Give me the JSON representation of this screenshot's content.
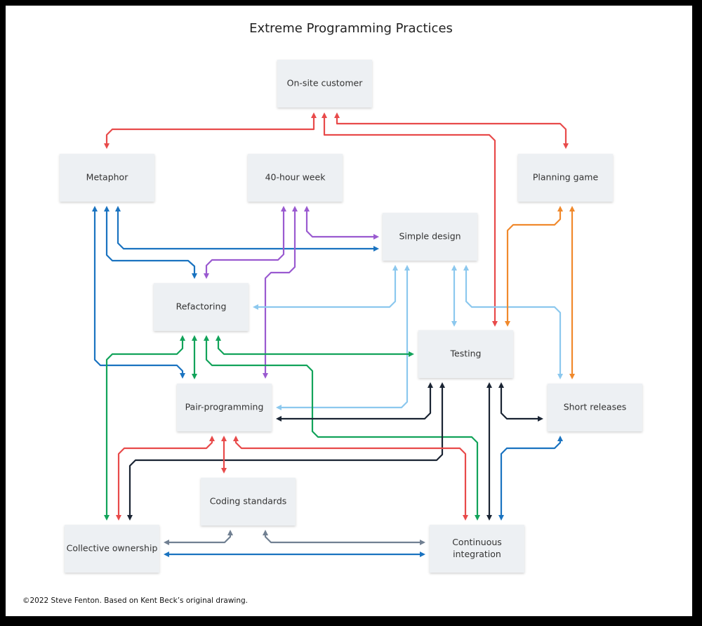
{
  "title": "Extreme Programming Practices",
  "footer": "©2022 Steve Fenton. Based on Kent Beck’s original drawing.",
  "colors": {
    "red": "#e84a4a",
    "blue": "#1a73c0",
    "light_blue": "#8cc8ee",
    "purple": "#9a5ad0",
    "green": "#12a35a",
    "orange": "#f0892c",
    "navy": "#1a2433",
    "gray": "#718092",
    "node_fill": "#edf0f3"
  },
  "nodes": [
    {
      "id": "onsite",
      "lines": [
        "On-site customer"
      ]
    },
    {
      "id": "metaphor",
      "lines": [
        "Metaphor"
      ]
    },
    {
      "id": "week",
      "lines": [
        "40-hour week"
      ]
    },
    {
      "id": "planning",
      "lines": [
        "Planning game"
      ]
    },
    {
      "id": "simple",
      "lines": [
        "Simple design"
      ]
    },
    {
      "id": "refactoring",
      "lines": [
        "Refactoring"
      ]
    },
    {
      "id": "testing",
      "lines": [
        "Testing"
      ]
    },
    {
      "id": "pair",
      "lines": [
        "Pair-programming"
      ]
    },
    {
      "id": "short",
      "lines": [
        "Short releases"
      ]
    },
    {
      "id": "coding",
      "lines": [
        "Coding standards"
      ]
    },
    {
      "id": "collective",
      "lines": [
        "Collective ownership"
      ]
    },
    {
      "id": "ci",
      "lines": [
        "Continuous",
        "integration"
      ]
    }
  ],
  "connections": [
    {
      "color": "red",
      "from": "onsite",
      "to": "metaphor"
    },
    {
      "color": "red",
      "from": "onsite",
      "to": "testing"
    },
    {
      "color": "red",
      "from": "onsite",
      "to": "planning"
    },
    {
      "color": "blue",
      "from": "metaphor",
      "to": "pair"
    },
    {
      "color": "blue",
      "from": "metaphor",
      "to": "refactoring"
    },
    {
      "color": "blue",
      "from": "metaphor",
      "to": "simple"
    },
    {
      "color": "purple",
      "from": "week",
      "to": "refactoring"
    },
    {
      "color": "purple",
      "from": "week",
      "to": "pair"
    },
    {
      "color": "purple",
      "from": "week",
      "to": "simple"
    },
    {
      "color": "light_blue",
      "from": "simple",
      "to": "refactoring"
    },
    {
      "color": "light_blue",
      "from": "simple",
      "to": "pair"
    },
    {
      "color": "light_blue",
      "from": "simple",
      "to": "testing"
    },
    {
      "color": "light_blue",
      "from": "simple",
      "to": "short"
    },
    {
      "color": "orange",
      "from": "planning",
      "to": "testing"
    },
    {
      "color": "orange",
      "from": "planning",
      "to": "short"
    },
    {
      "color": "green",
      "from": "refactoring",
      "to": "collective"
    },
    {
      "color": "green",
      "from": "refactoring",
      "to": "pair"
    },
    {
      "color": "green",
      "from": "refactoring",
      "to": "ci"
    },
    {
      "color": "green",
      "from": "refactoring",
      "to": "testing"
    },
    {
      "color": "navy",
      "from": "testing",
      "to": "pair"
    },
    {
      "color": "navy",
      "from": "testing",
      "to": "collective"
    },
    {
      "color": "navy",
      "from": "testing",
      "to": "ci"
    },
    {
      "color": "navy",
      "from": "testing",
      "to": "short"
    },
    {
      "color": "red",
      "from": "pair",
      "to": "collective"
    },
    {
      "color": "red",
      "from": "pair",
      "to": "coding"
    },
    {
      "color": "red",
      "from": "pair",
      "to": "ci"
    },
    {
      "color": "blue",
      "from": "short",
      "to": "ci"
    },
    {
      "color": "gray",
      "from": "coding",
      "to": "collective"
    },
    {
      "color": "gray",
      "from": "coding",
      "to": "ci"
    },
    {
      "color": "blue",
      "from": "collective",
      "to": "ci"
    }
  ]
}
